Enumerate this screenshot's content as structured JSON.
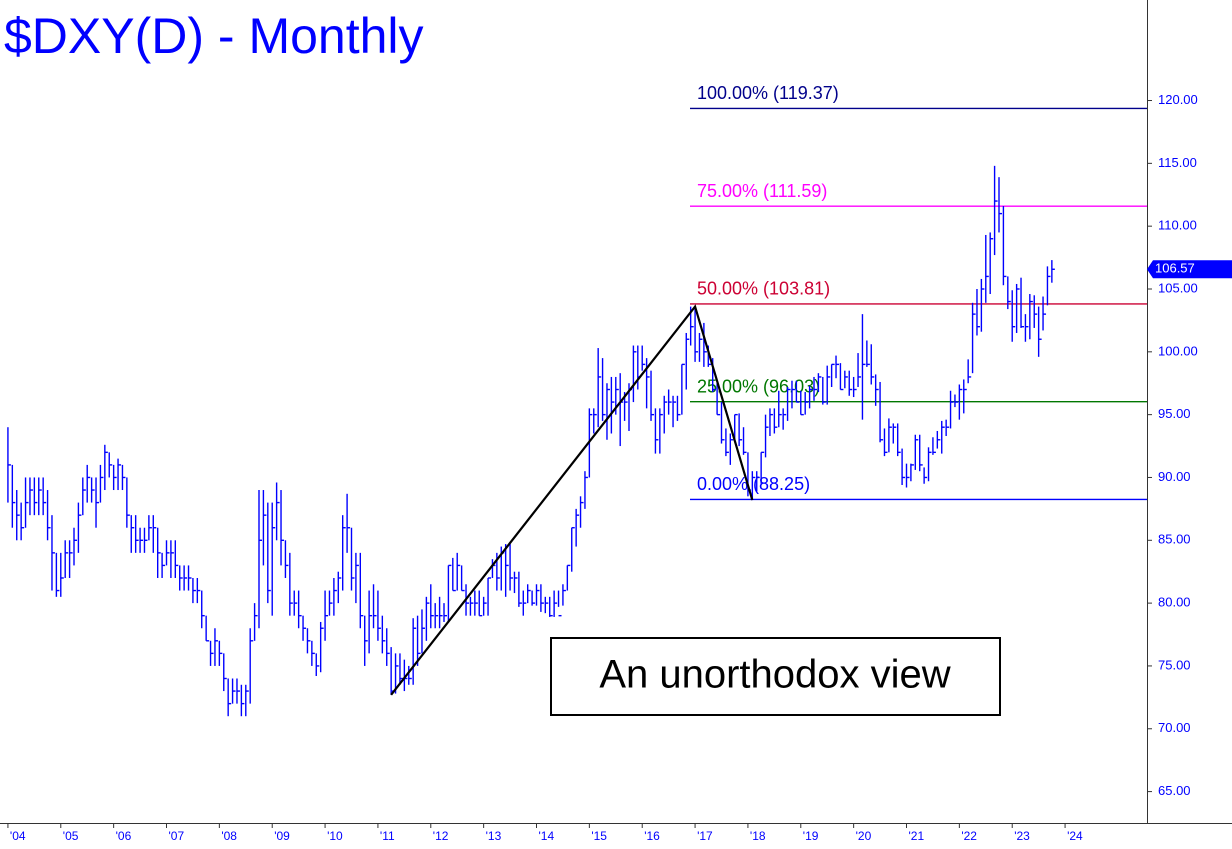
{
  "chart_data": {
    "type": "ohlc",
    "title": "$DXY(D) - Monthly",
    "annotation": "An unorthodox view",
    "color": "#0000ff",
    "x": [
      "2004-01",
      "2004-02",
      "2004-03",
      "2004-04",
      "2004-05",
      "2004-06",
      "2004-07",
      "2004-08",
      "2004-09",
      "2004-10",
      "2004-11",
      "2004-12",
      "2005-01",
      "2005-02",
      "2005-03",
      "2005-04",
      "2005-05",
      "2005-06",
      "2005-07",
      "2005-08",
      "2005-09",
      "2005-10",
      "2005-11",
      "2005-12",
      "2006-01",
      "2006-02",
      "2006-03",
      "2006-04",
      "2006-05",
      "2006-06",
      "2006-07",
      "2006-08",
      "2006-09",
      "2006-10",
      "2006-11",
      "2006-12",
      "2007-01",
      "2007-02",
      "2007-03",
      "2007-04",
      "2007-05",
      "2007-06",
      "2007-07",
      "2007-08",
      "2007-09",
      "2007-10",
      "2007-11",
      "2007-12",
      "2008-01",
      "2008-02",
      "2008-03",
      "2008-04",
      "2008-05",
      "2008-06",
      "2008-07",
      "2008-08",
      "2008-09",
      "2008-10",
      "2008-11",
      "2008-12",
      "2009-01",
      "2009-02",
      "2009-03",
      "2009-04",
      "2009-05",
      "2009-06",
      "2009-07",
      "2009-08",
      "2009-09",
      "2009-10",
      "2009-11",
      "2009-12",
      "2010-01",
      "2010-02",
      "2010-03",
      "2010-04",
      "2010-05",
      "2010-06",
      "2010-07",
      "2010-08",
      "2010-09",
      "2010-10",
      "2010-11",
      "2010-12",
      "2011-01",
      "2011-02",
      "2011-03",
      "2011-04",
      "2011-05",
      "2011-06",
      "2011-07",
      "2011-08",
      "2011-09",
      "2011-10",
      "2011-11",
      "2011-12",
      "2012-01",
      "2012-02",
      "2012-03",
      "2012-04",
      "2012-05",
      "2012-06",
      "2012-07",
      "2012-08",
      "2012-09",
      "2012-10",
      "2012-11",
      "2012-12",
      "2013-01",
      "2013-02",
      "2013-03",
      "2013-04",
      "2013-05",
      "2013-06",
      "2013-07",
      "2013-08",
      "2013-09",
      "2013-10",
      "2013-11",
      "2013-12",
      "2014-01",
      "2014-02",
      "2014-03",
      "2014-04",
      "2014-05",
      "2014-06",
      "2014-07",
      "2014-08",
      "2014-09",
      "2014-10",
      "2014-11",
      "2014-12",
      "2015-01",
      "2015-02",
      "2015-03",
      "2015-04",
      "2015-05",
      "2015-06",
      "2015-07",
      "2015-08",
      "2015-09",
      "2015-10",
      "2015-11",
      "2015-12",
      "2016-01",
      "2016-02",
      "2016-03",
      "2016-04",
      "2016-05",
      "2016-06",
      "2016-07",
      "2016-08",
      "2016-09",
      "2016-10",
      "2016-11",
      "2016-12",
      "2017-01",
      "2017-02",
      "2017-03",
      "2017-04",
      "2017-05",
      "2017-06",
      "2017-07",
      "2017-08",
      "2017-09",
      "2017-10",
      "2017-11",
      "2017-12",
      "2018-01",
      "2018-02",
      "2018-03",
      "2018-04",
      "2018-05",
      "2018-06",
      "2018-07",
      "2018-08",
      "2018-09",
      "2018-10",
      "2018-11",
      "2018-12",
      "2019-01",
      "2019-02",
      "2019-03",
      "2019-04",
      "2019-05",
      "2019-06",
      "2019-07",
      "2019-08",
      "2019-09",
      "2019-10",
      "2019-11",
      "2019-12",
      "2020-01",
      "2020-02",
      "2020-03",
      "2020-04",
      "2020-05",
      "2020-06",
      "2020-07",
      "2020-08",
      "2020-09",
      "2020-10",
      "2020-11",
      "2020-12",
      "2021-01",
      "2021-02",
      "2021-03",
      "2021-04",
      "2021-05",
      "2021-06",
      "2021-07",
      "2021-08",
      "2021-09",
      "2021-10",
      "2021-11",
      "2021-12",
      "2022-01",
      "2022-02",
      "2022-03",
      "2022-04",
      "2022-05",
      "2022-06",
      "2022-07",
      "2022-08",
      "2022-09",
      "2022-10",
      "2022-11",
      "2022-12",
      "2023-01",
      "2023-02",
      "2023-03",
      "2023-04",
      "2023-05",
      "2023-06",
      "2023-07",
      "2023-08",
      "2023-09",
      "2023-10"
    ],
    "high": [
      94,
      91,
      89,
      88,
      90,
      90,
      90,
      90,
      90,
      89,
      87,
      84,
      84,
      85,
      85,
      86,
      88,
      90,
      91,
      90,
      90,
      91,
      92.6,
      92,
      91,
      91.5,
      91,
      90,
      87,
      87,
      86,
      86,
      87,
      87,
      86,
      84,
      85,
      85,
      85,
      83,
      83,
      83,
      82,
      82,
      81,
      79,
      77,
      78,
      77,
      76,
      74,
      74,
      74,
      73.5,
      73.5,
      78,
      80,
      89,
      89,
      88,
      88,
      89.6,
      89,
      85,
      84,
      81,
      81,
      79,
      78,
      77,
      76,
      78.5,
      81,
      81,
      82,
      82.5,
      87,
      88.7,
      86,
      84,
      84,
      79,
      81,
      81.5,
      81,
      79,
      78,
      76.5,
      76,
      76,
      75.5,
      75,
      78.8,
      79,
      79.5,
      80.5,
      81.5,
      80,
      80.5,
      80,
      83,
      83.6,
      84,
      83,
      81.5,
      80.5,
      81,
      81,
      80.5,
      82,
      83.5,
      84,
      84.5,
      84.7,
      84.7,
      82.5,
      82.5,
      81,
      81.5,
      81,
      81.5,
      81.5,
      80.5,
      80.5,
      81,
      81,
      81.5,
      83,
      86,
      87.5,
      88.5,
      90.5,
      95.5,
      95.5,
      100.3,
      99.5,
      97.5,
      98,
      98,
      98.3,
      96.8,
      97.5,
      100.5,
      100.5,
      100.5,
      99.5,
      98.5,
      95.5,
      95.5,
      96.5,
      97,
      96.5,
      96.5,
      99,
      101.5,
      103.6,
      103.6,
      101.5,
      102.3,
      100.5,
      99.5,
      97.5,
      96,
      93.9,
      93.5,
      95,
      95.1,
      94,
      92,
      90.5,
      90.5,
      92,
      95,
      95.5,
      95.5,
      96.9,
      95.5,
      97.2,
      97.7,
      97.7,
      96.9,
      96.8,
      97.3,
      98,
      98.3,
      98,
      98.9,
      99,
      99.7,
      99.1,
      98.5,
      98.5,
      98,
      99.9,
      103,
      100.9,
      100.6,
      98.2,
      97.6,
      93.9,
      94.7,
      94.3,
      94.3,
      92.3,
      91.1,
      91.1,
      93.4,
      93.4,
      90.8,
      92.4,
      93.2,
      93.7,
      94.5,
      94.6,
      96.9,
      96.6,
      97.4,
      97.8,
      99.4,
      103.9,
      105,
      105.8,
      109.3,
      109.5,
      114.8,
      113.9,
      111.6,
      106,
      104.9,
      105.4,
      105.9,
      103,
      104.6,
      104.5,
      103.6,
      104.4,
      106.8,
      107.3
    ],
    "low": [
      88,
      86,
      85,
      85,
      86,
      87,
      87,
      87,
      87,
      85,
      81,
      80.5,
      80.5,
      82,
      82,
      83,
      84,
      87,
      88,
      88,
      86,
      88,
      89,
      90,
      89,
      89,
      89,
      86,
      84,
      84,
      84,
      84,
      85,
      84,
      82,
      82,
      83,
      82,
      82,
      81,
      81,
      81,
      80,
      80,
      78,
      77,
      75,
      75,
      75,
      73,
      71,
      72,
      72,
      71,
      71,
      72,
      77,
      78,
      83,
      80,
      79,
      85,
      83,
      82,
      79,
      79,
      78,
      77,
      76,
      75,
      74.2,
      74.5,
      77,
      79,
      79,
      80,
      81,
      84,
      81,
      80,
      78,
      75,
      76,
      78,
      77,
      76,
      75,
      72.7,
      72.8,
      73.5,
      73,
      73.5,
      73.5,
      75,
      76,
      77,
      78,
      78,
      78,
      78.5,
      78.5,
      81,
      81,
      81,
      79,
      79,
      79,
      79,
      79,
      79,
      82,
      81,
      81,
      80.5,
      81,
      80.8,
      79.7,
      79,
      80,
      79.8,
      79.8,
      79.3,
      79.2,
      78.9,
      78.9,
      79.7,
      79.8,
      81,
      82.5,
      84.5,
      86,
      87.5,
      90,
      93.5,
      94,
      94.5,
      93,
      93.5,
      95,
      92.5,
      94.5,
      93.7,
      96,
      97,
      98.5,
      95.5,
      94.5,
      91.9,
      91.9,
      93.5,
      95,
      94,
      94.5,
      95,
      97,
      100.5,
      99.2,
      99.2,
      98.8,
      98.8,
      96.8,
      95,
      92.7,
      91.7,
      91,
      92.8,
      92.5,
      91.8,
      88.5,
      88.2,
      88.9,
      89.5,
      91.6,
      93.3,
      93.5,
      94,
      93.8,
      94.5,
      95.5,
      96,
      95,
      95,
      95.5,
      96.1,
      96.8,
      95.8,
      95.8,
      97.2,
      97.9,
      97,
      97.1,
      96.5,
      96.4,
      97.2,
      94.6,
      98.8,
      97.4,
      95.7,
      92.8,
      91.7,
      92,
      92.7,
      91.7,
      89.4,
      89.2,
      89.7,
      90.6,
      90.5,
      89.5,
      89.7,
      91.8,
      92.3,
      91.9,
      93.3,
      93.9,
      95.6,
      94.6,
      95.1,
      97.5,
      98.3,
      101.3,
      101.6,
      103.9,
      104.6,
      107.7,
      109.5,
      105.3,
      103.4,
      100.8,
      101.5,
      101.9,
      100.8,
      101,
      101.9,
      99.6,
      101.7,
      103.7,
      105.5
    ],
    "close": [
      91,
      88,
      87,
      86,
      88,
      89,
      88,
      89,
      88,
      86,
      84,
      81,
      82,
      84,
      84,
      85,
      87,
      89,
      90,
      89,
      88,
      90,
      92,
      91,
      90,
      91,
      90,
      87,
      86,
      85,
      85,
      85,
      86,
      86,
      84,
      83,
      84,
      84,
      83,
      82,
      82,
      82,
      81,
      81,
      79,
      77,
      76,
      77,
      76,
      74,
      72,
      73,
      73,
      72,
      73,
      77,
      79,
      85,
      87,
      81,
      86,
      88,
      85,
      83,
      80,
      80,
      79,
      78,
      77,
      76,
      75,
      78,
      79,
      80,
      81,
      82,
      86,
      86,
      82,
      83,
      79,
      77,
      79,
      79,
      78,
      77,
      76,
      73,
      75,
      74,
      74,
      74,
      78,
      76,
      78,
      80,
      79,
      79,
      79,
      79,
      83,
      81,
      83,
      81,
      80,
      80,
      80,
      79,
      80,
      82,
      83,
      82,
      84,
      83,
      82,
      82,
      80,
      80,
      81,
      80,
      81,
      80,
      80,
      79,
      80,
      79,
      81,
      83,
      86,
      87,
      88,
      90,
      95,
      95,
      98,
      95,
      97,
      96,
      97,
      96,
      96,
      97,
      100,
      98,
      99,
      98,
      95,
      93,
      95,
      96,
      96,
      96,
      95,
      99,
      101,
      102,
      100,
      101,
      100,
      99,
      97,
      95,
      93,
      92,
      93,
      95,
      93,
      92,
      89,
      90,
      90,
      92,
      94,
      95,
      94,
      95,
      95,
      97,
      97,
      96,
      95,
      96,
      97,
      97,
      98,
      96,
      98,
      99,
      99,
      97,
      98,
      97,
      97,
      98,
      99,
      99,
      98,
      97,
      93,
      92,
      94,
      94,
      92,
      90,
      90,
      91,
      93,
      91,
      90,
      92,
      92,
      93,
      94,
      94,
      96,
      96,
      97,
      97,
      98,
      103,
      102,
      105,
      106,
      109,
      112,
      111,
      106,
      104,
      102,
      105,
      102,
      102,
      104,
      103,
      101,
      103,
      106,
      106.57
    ],
    "levels": [
      {
        "label": "100.00% (119.37)",
        "value": 119.37,
        "color": "#00008b"
      },
      {
        "label": "75.00% (111.59)",
        "value": 111.59,
        "color": "#ff00ff"
      },
      {
        "label": "50.00% (103.81)",
        "value": 103.81,
        "color": "#cc0033"
      },
      {
        "label": "25.00% (96.03)",
        "value": 96.03,
        "color": "#007700"
      },
      {
        "label": "0.00% (88.25)",
        "value": 88.25,
        "color": "#0000ff"
      }
    ],
    "trendline": {
      "x": [
        "2011-04",
        "2017-01",
        "2018-02"
      ],
      "y": [
        72.7,
        103.6,
        88.2
      ],
      "color": "#000000"
    },
    "ylim": [
      62.5,
      128
    ],
    "yticks": [
      {
        "value": 65,
        "label": "65.00"
      },
      {
        "value": 70,
        "label": "70.00"
      },
      {
        "value": 75,
        "label": "75.00"
      },
      {
        "value": 80,
        "label": "80.00"
      },
      {
        "value": 85,
        "label": "85.00"
      },
      {
        "value": 90,
        "label": "90.00"
      },
      {
        "value": 95,
        "label": "95.00"
      },
      {
        "value": 100,
        "label": "100.00"
      },
      {
        "value": 105,
        "label": "105.00"
      },
      {
        "value": 110,
        "label": "110.00"
      },
      {
        "value": 115,
        "label": "115.00"
      },
      {
        "value": 120,
        "label": "120.00"
      }
    ],
    "xticks": [
      {
        "value": 2004,
        "label": "'04"
      },
      {
        "value": 2005,
        "label": "'05"
      },
      {
        "value": 2006,
        "label": "'06"
      },
      {
        "value": 2007,
        "label": "'07"
      },
      {
        "value": 2008,
        "label": "'08"
      },
      {
        "value": 2009,
        "label": "'09"
      },
      {
        "value": 2010,
        "label": "'10"
      },
      {
        "value": 2011,
        "label": "'11"
      },
      {
        "value": 2012,
        "label": "'12"
      },
      {
        "value": 2013,
        "label": "'13"
      },
      {
        "value": 2014,
        "label": "'14"
      },
      {
        "value": 2015,
        "label": "'15"
      },
      {
        "value": 2016,
        "label": "'16"
      },
      {
        "value": 2017,
        "label": "'17"
      },
      {
        "value": 2018,
        "label": "'18"
      },
      {
        "value": 2019,
        "label": "'19"
      },
      {
        "value": 2020,
        "label": "'20"
      },
      {
        "value": 2021,
        "label": "'21"
      },
      {
        "value": 2022,
        "label": "'22"
      },
      {
        "value": 2023,
        "label": "'23"
      },
      {
        "value": 2024,
        "label": "'24"
      }
    ],
    "xlim": [
      2003.85,
      2025.55
    ]
  }
}
